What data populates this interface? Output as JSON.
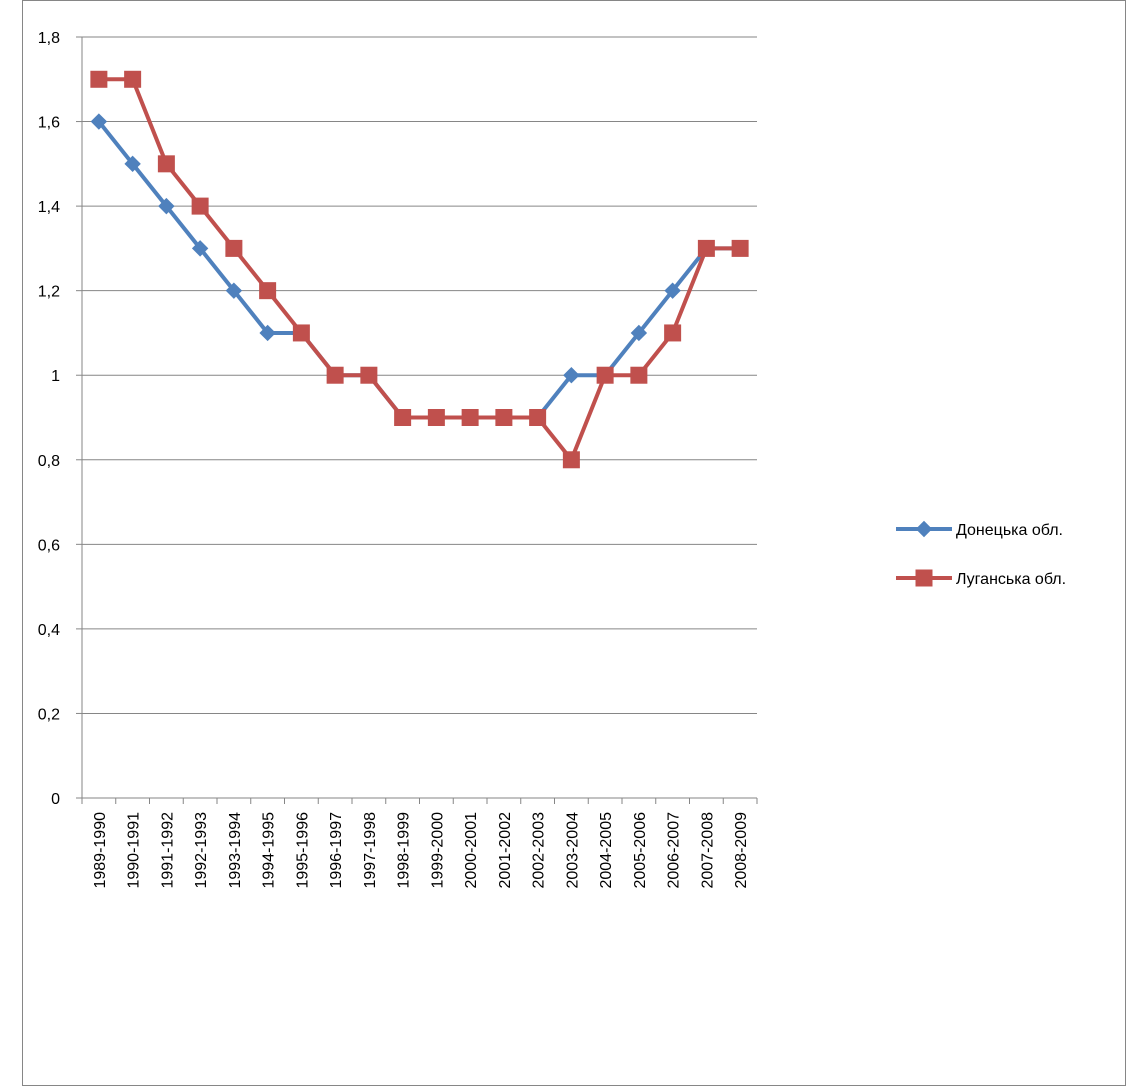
{
  "chart_data": {
    "type": "line",
    "title": "",
    "xlabel": "",
    "ylabel": "",
    "ylim": [
      0,
      1.8
    ],
    "y_ticks": [
      "0",
      "0,2",
      "0,4",
      "0,6",
      "0,8",
      "1",
      "1,2",
      "1,4",
      "1,6",
      "1,8"
    ],
    "y_tick_values": [
      0,
      0.2,
      0.4,
      0.6,
      0.8,
      1.0,
      1.2,
      1.4,
      1.6,
      1.8
    ],
    "grid": true,
    "legend_position": "right",
    "categories": [
      "1989-1990",
      "1990-1991",
      "1991-1992",
      "1992-1993",
      "1993-1994",
      "1994-1995",
      "1995-1996",
      "1996-1997",
      "1997-1998",
      "1998-1999",
      "1999-2000",
      "2000-2001",
      "2001-2002",
      "2002-2003",
      "2003-2004",
      "2004-2005",
      "2005-2006",
      "2006-2007",
      "2007-2008",
      "2008-2009"
    ],
    "series": [
      {
        "name": "Донецька обл.",
        "color": "#4F81BD",
        "marker": "diamond",
        "values": [
          1.6,
          1.5,
          1.4,
          1.3,
          1.2,
          1.1,
          1.1,
          1.0,
          1.0,
          0.9,
          0.9,
          0.9,
          0.9,
          0.9,
          1.0,
          1.0,
          1.1,
          1.2,
          1.3,
          1.3
        ]
      },
      {
        "name": "Луганська обл.",
        "color": "#C0504D",
        "marker": "square",
        "values": [
          1.7,
          1.7,
          1.5,
          1.4,
          1.3,
          1.2,
          1.1,
          1.0,
          1.0,
          0.9,
          0.9,
          0.9,
          0.9,
          0.9,
          0.8,
          1.0,
          1.0,
          1.1,
          1.3,
          1.3
        ]
      }
    ]
  }
}
